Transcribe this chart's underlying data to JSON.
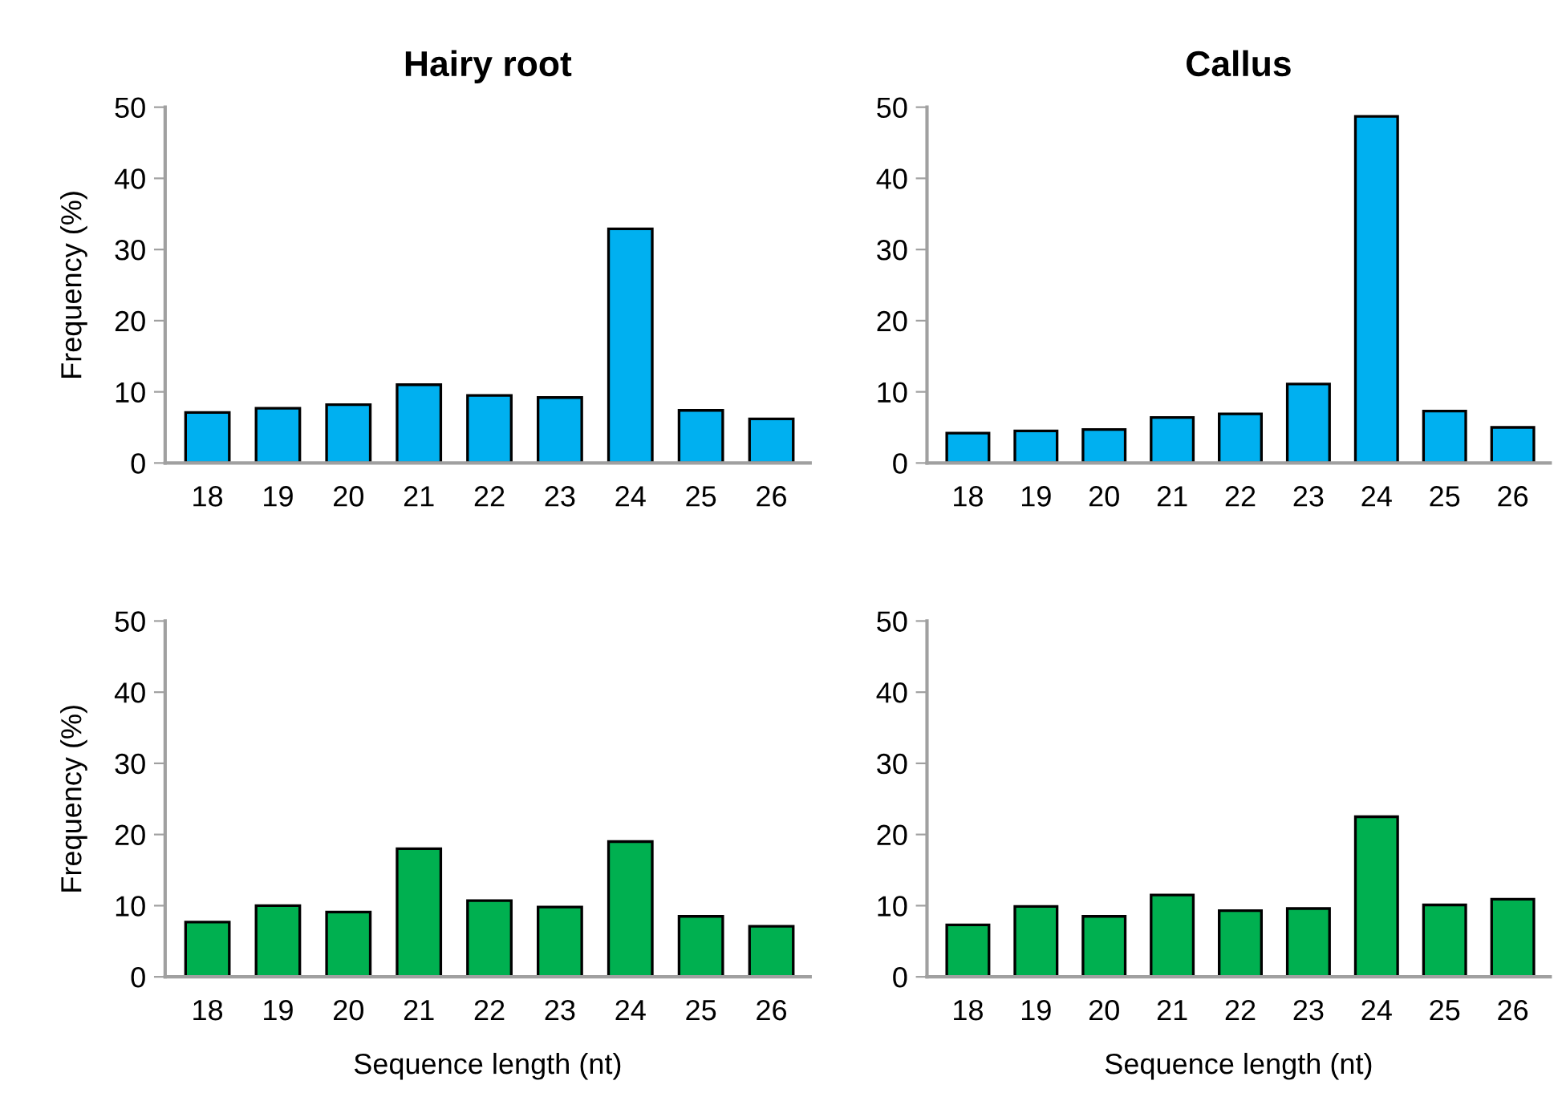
{
  "chart_data": [
    {
      "type": "bar",
      "title": "Hairy root",
      "ylabel": "Frequency (%)",
      "categories": [
        "18",
        "19",
        "20",
        "21",
        "22",
        "23",
        "24",
        "25",
        "26"
      ],
      "values": [
        7.1,
        7.7,
        8.2,
        11.0,
        9.5,
        9.2,
        32.9,
        7.4,
        6.2
      ],
      "color": "#00b0f0",
      "ylim": [
        0,
        50
      ],
      "yticks": [
        0,
        10,
        20,
        30,
        40,
        50
      ]
    },
    {
      "type": "bar",
      "title": "Callus",
      "categories": [
        "18",
        "19",
        "20",
        "21",
        "22",
        "23",
        "24",
        "25",
        "26"
      ],
      "values": [
        4.2,
        4.5,
        4.7,
        6.4,
        6.9,
        11.1,
        48.7,
        7.3,
        5.0
      ],
      "color": "#00b0f0",
      "ylim": [
        0,
        50
      ],
      "yticks": [
        0,
        10,
        20,
        30,
        40,
        50
      ]
    },
    {
      "type": "bar",
      "ylabel": "Frequency (%)",
      "xlabel": "Sequence length (nt)",
      "categories": [
        "18",
        "19",
        "20",
        "21",
        "22",
        "23",
        "24",
        "25",
        "26"
      ],
      "values": [
        7.7,
        10.0,
        9.1,
        18.0,
        10.7,
        9.8,
        19.0,
        8.5,
        7.1
      ],
      "color": "#00b050",
      "ylim": [
        0,
        50
      ],
      "yticks": [
        0,
        10,
        20,
        30,
        40,
        50
      ]
    },
    {
      "type": "bar",
      "xlabel": "Sequence length (nt)",
      "categories": [
        "18",
        "19",
        "20",
        "21",
        "22",
        "23",
        "24",
        "25",
        "26"
      ],
      "values": [
        7.3,
        9.9,
        8.5,
        11.5,
        9.3,
        9.6,
        22.5,
        10.1,
        10.9
      ],
      "color": "#00b050",
      "ylim": [
        0,
        50
      ],
      "yticks": [
        0,
        10,
        20,
        30,
        40,
        50
      ]
    }
  ]
}
